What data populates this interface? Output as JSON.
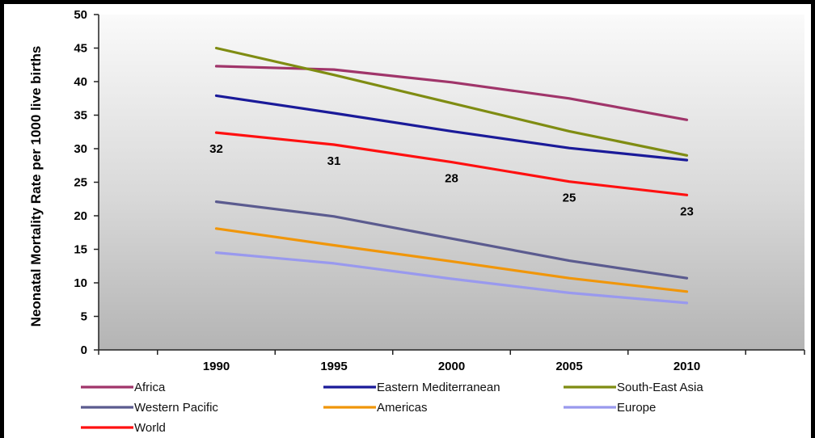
{
  "chart_data": {
    "type": "line",
    "title": "",
    "xlabel": "",
    "ylabel": "Neonatal Mortality Rate per 1000 live births",
    "x": [
      1990,
      1995,
      2000,
      2005,
      2010
    ],
    "xticks": [
      "1990",
      "1995",
      "2000",
      "2005",
      "2010"
    ],
    "yticks": [
      "0",
      "5",
      "10",
      "15",
      "20",
      "25",
      "30",
      "35",
      "40",
      "45",
      "50"
    ],
    "ylim": [
      0,
      50
    ],
    "xlim": [
      1985,
      2015
    ],
    "grid": false,
    "background": "gradient-gray",
    "legend_position": "bottom",
    "series": [
      {
        "name": "Africa",
        "color": "#a0356a",
        "values": [
          42.3,
          41.8,
          39.9,
          37.5,
          34.3
        ]
      },
      {
        "name": "Eastern Mediterranean",
        "color": "#1a1a99",
        "values": [
          37.9,
          35.3,
          32.6,
          30.1,
          28.3
        ]
      },
      {
        "name": "South-East Asia",
        "color": "#7f8c12",
        "values": [
          45.0,
          41.0,
          36.8,
          32.6,
          29.0
        ]
      },
      {
        "name": "Western Pacific",
        "color": "#5b5b8f",
        "values": [
          22.1,
          19.9,
          16.6,
          13.3,
          10.7
        ]
      },
      {
        "name": "Americas",
        "color": "#f0960a",
        "values": [
          18.1,
          15.6,
          13.2,
          10.7,
          8.7
        ]
      },
      {
        "name": "Europe",
        "color": "#9999ee",
        "values": [
          14.5,
          12.9,
          10.6,
          8.5,
          7.0
        ]
      },
      {
        "name": "World",
        "color": "#ff1010",
        "values": [
          32.4,
          30.6,
          28.0,
          25.1,
          23.1
        ]
      }
    ],
    "data_labels": [
      {
        "series": "World",
        "x": 1990,
        "text": "32"
      },
      {
        "series": "World",
        "x": 1995,
        "text": "31"
      },
      {
        "series": "World",
        "x": 2000,
        "text": "28"
      },
      {
        "series": "World",
        "x": 2005,
        "text": "25"
      },
      {
        "series": "World",
        "x": 2010,
        "text": "23"
      }
    ]
  }
}
